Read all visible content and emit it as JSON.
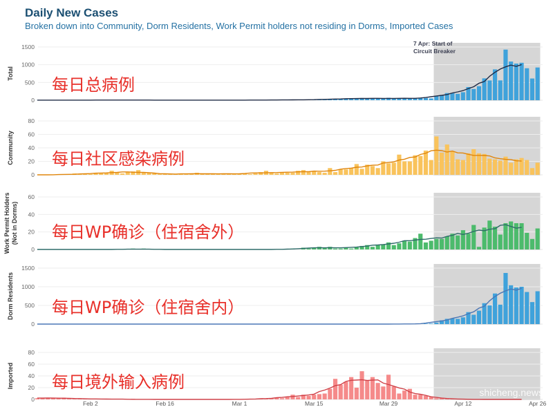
{
  "title": "Daily New Cases",
  "subtitle": "Broken down into Community, Dorm Residents, Work Permit holders not residing in Dorms, Imported Cases",
  "annotation": [
    "7 Apr: Start of",
    "Circuit Breaker"
  ],
  "overlays": [
    "每日总病例",
    "每日社区感染病例",
    "每日WP确诊（住宿舍外）",
    "每日WP确诊（住宿舍内）",
    "每日境外输入病例"
  ],
  "watermark": "shicheng.news",
  "chart_data": {
    "type": "bar",
    "title": "Daily New Cases",
    "x": [
      "Jan 23",
      "Jan 24",
      "Jan 25",
      "Jan 26",
      "Jan 27",
      "Jan 28",
      "Jan 29",
      "Jan 30",
      "Jan 31",
      "Feb 1",
      "Feb 2",
      "Feb 3",
      "Feb 4",
      "Feb 5",
      "Feb 6",
      "Feb 7",
      "Feb 8",
      "Feb 9",
      "Feb 10",
      "Feb 11",
      "Feb 12",
      "Feb 13",
      "Feb 14",
      "Feb 15",
      "Feb 16",
      "Feb 17",
      "Feb 18",
      "Feb 19",
      "Feb 20",
      "Feb 21",
      "Feb 22",
      "Feb 23",
      "Feb 24",
      "Feb 25",
      "Feb 26",
      "Feb 27",
      "Feb 28",
      "Feb 29",
      "Mar 1",
      "Mar 2",
      "Mar 3",
      "Mar 4",
      "Mar 5",
      "Mar 6",
      "Mar 7",
      "Mar 8",
      "Mar 9",
      "Mar 10",
      "Mar 11",
      "Mar 12",
      "Mar 13",
      "Mar 14",
      "Mar 15",
      "Mar 16",
      "Mar 17",
      "Mar 18",
      "Mar 19",
      "Mar 20",
      "Mar 21",
      "Mar 22",
      "Mar 23",
      "Mar 24",
      "Mar 25",
      "Mar 26",
      "Mar 27",
      "Mar 28",
      "Mar 29",
      "Mar 30",
      "Mar 31",
      "Apr 1",
      "Apr 2",
      "Apr 3",
      "Apr 4",
      "Apr 5",
      "Apr 6",
      "Apr 7",
      "Apr 8",
      "Apr 9",
      "Apr 10",
      "Apr 11",
      "Apr 12",
      "Apr 13",
      "Apr 14",
      "Apr 15",
      "Apr 16",
      "Apr 17",
      "Apr 18",
      "Apr 19",
      "Apr 20",
      "Apr 21",
      "Apr 22",
      "Apr 23",
      "Apr 24",
      "Apr 25",
      "Apr 26"
    ],
    "x_ticks": [
      "Feb 2",
      "Feb 16",
      "Mar 1",
      "Mar 15",
      "Mar 29",
      "Apr 12",
      "Apr 26"
    ],
    "shaded_range": [
      "Apr 7",
      "Apr 26"
    ],
    "line": "7-day moving average",
    "panels": [
      {
        "ylabel": [
          "Total"
        ],
        "ylim": [
          0,
          1500
        ],
        "yticks": [
          0,
          500,
          1000,
          1500
        ],
        "bar_color": "#3fa2db",
        "line_color": "#1f2a44",
        "values": "sum"
      },
      {
        "ylabel": [
          "Community"
        ],
        "ylim": [
          0,
          80
        ],
        "yticks": [
          0,
          20,
          40,
          60,
          80
        ],
        "bar_color": "#f9c35c",
        "line_color": "#e0850b",
        "values": [
          0,
          0,
          0,
          0,
          0,
          0,
          1,
          2,
          1,
          1,
          1,
          3,
          2,
          3,
          6,
          3,
          2,
          4,
          5,
          7,
          3,
          3,
          2,
          1,
          1,
          1,
          1,
          2,
          1,
          1,
          3,
          1,
          2,
          2,
          1,
          1,
          1,
          2,
          2,
          2,
          1,
          2,
          4,
          6,
          3,
          2,
          3,
          3,
          3,
          6,
          7,
          4,
          5,
          4,
          3,
          10,
          4,
          8,
          8,
          10,
          16,
          9,
          15,
          13,
          10,
          20,
          17,
          18,
          30,
          20,
          20,
          29,
          28,
          36,
          22,
          57,
          33,
          45,
          35,
          23,
          22,
          32,
          38,
          32,
          31,
          24,
          23,
          21,
          27,
          18,
          23,
          25,
          22,
          10,
          18
        ]
      },
      {
        "ylabel": [
          "Work Permit Holders",
          "(Not in Dorms)"
        ],
        "ylim": [
          0,
          60
        ],
        "yticks": [
          0,
          20,
          40,
          60
        ],
        "bar_color": "#4cbb6c",
        "line_color": "#2f6b6a",
        "values": [
          0,
          0,
          0,
          0,
          0,
          0,
          0,
          0,
          0,
          0,
          0,
          0,
          0,
          0,
          0,
          0,
          0,
          0,
          1,
          0,
          1,
          0,
          0,
          0,
          0,
          0,
          0,
          0,
          0,
          0,
          0,
          0,
          0,
          0,
          0,
          0,
          0,
          0,
          0,
          0,
          0,
          0,
          0,
          0,
          0,
          0,
          0,
          0,
          1,
          0,
          2,
          1,
          2,
          3,
          2,
          3,
          1,
          1,
          2,
          1,
          3,
          4,
          5,
          3,
          5,
          6,
          8,
          5,
          7,
          10,
          9,
          13,
          18,
          8,
          10,
          12,
          12,
          15,
          18,
          16,
          22,
          18,
          28,
          3,
          25,
          33,
          26,
          17,
          30,
          32,
          30,
          30,
          19,
          12,
          24
        ]
      },
      {
        "ylabel": [
          "Dorm Residents"
        ],
        "ylim": [
          0,
          1500
        ],
        "yticks": [
          0,
          500,
          1000,
          1500
        ],
        "bar_color": "#3fa2db",
        "line_color": "#4a76b5",
        "values": [
          0,
          0,
          0,
          0,
          0,
          0,
          0,
          0,
          0,
          0,
          0,
          0,
          0,
          0,
          0,
          0,
          0,
          0,
          0,
          0,
          0,
          0,
          0,
          0,
          0,
          0,
          0,
          0,
          0,
          0,
          0,
          0,
          0,
          0,
          0,
          0,
          0,
          0,
          0,
          0,
          0,
          0,
          0,
          0,
          0,
          0,
          0,
          0,
          0,
          0,
          0,
          0,
          0,
          0,
          0,
          0,
          0,
          0,
          0,
          0,
          0,
          0,
          0,
          0,
          0,
          0,
          1,
          1,
          2,
          2,
          3,
          5,
          8,
          10,
          15,
          40,
          100,
          140,
          150,
          140,
          180,
          320,
          250,
          360,
          560,
          500,
          820,
          520,
          1370,
          1040,
          980,
          1000,
          860,
          590,
          880
        ]
      },
      {
        "ylabel": [
          "Imported"
        ],
        "ylim": [
          0,
          80
        ],
        "yticks": [
          0,
          20,
          40,
          60,
          80
        ],
        "bar_color": "#f58a8a",
        "line_color": "#cf4148",
        "values": [
          2,
          2,
          2,
          3,
          2,
          3,
          2,
          1,
          1,
          1,
          1,
          1,
          0,
          1,
          1,
          0,
          0,
          0,
          1,
          0,
          0,
          0,
          0,
          0,
          0,
          0,
          0,
          0,
          0,
          0,
          0,
          0,
          0,
          0,
          0,
          0,
          0,
          0,
          0,
          0,
          1,
          0,
          1,
          1,
          2,
          3,
          2,
          4,
          8,
          4,
          8,
          6,
          8,
          9,
          10,
          18,
          35,
          25,
          30,
          38,
          20,
          48,
          32,
          38,
          28,
          22,
          42,
          22,
          10,
          15,
          18,
          8,
          8,
          6,
          4,
          2,
          2,
          1,
          1,
          0,
          1,
          0,
          0,
          0,
          0,
          0,
          0,
          0,
          0,
          0,
          0,
          0,
          0,
          0,
          0
        ]
      }
    ]
  }
}
